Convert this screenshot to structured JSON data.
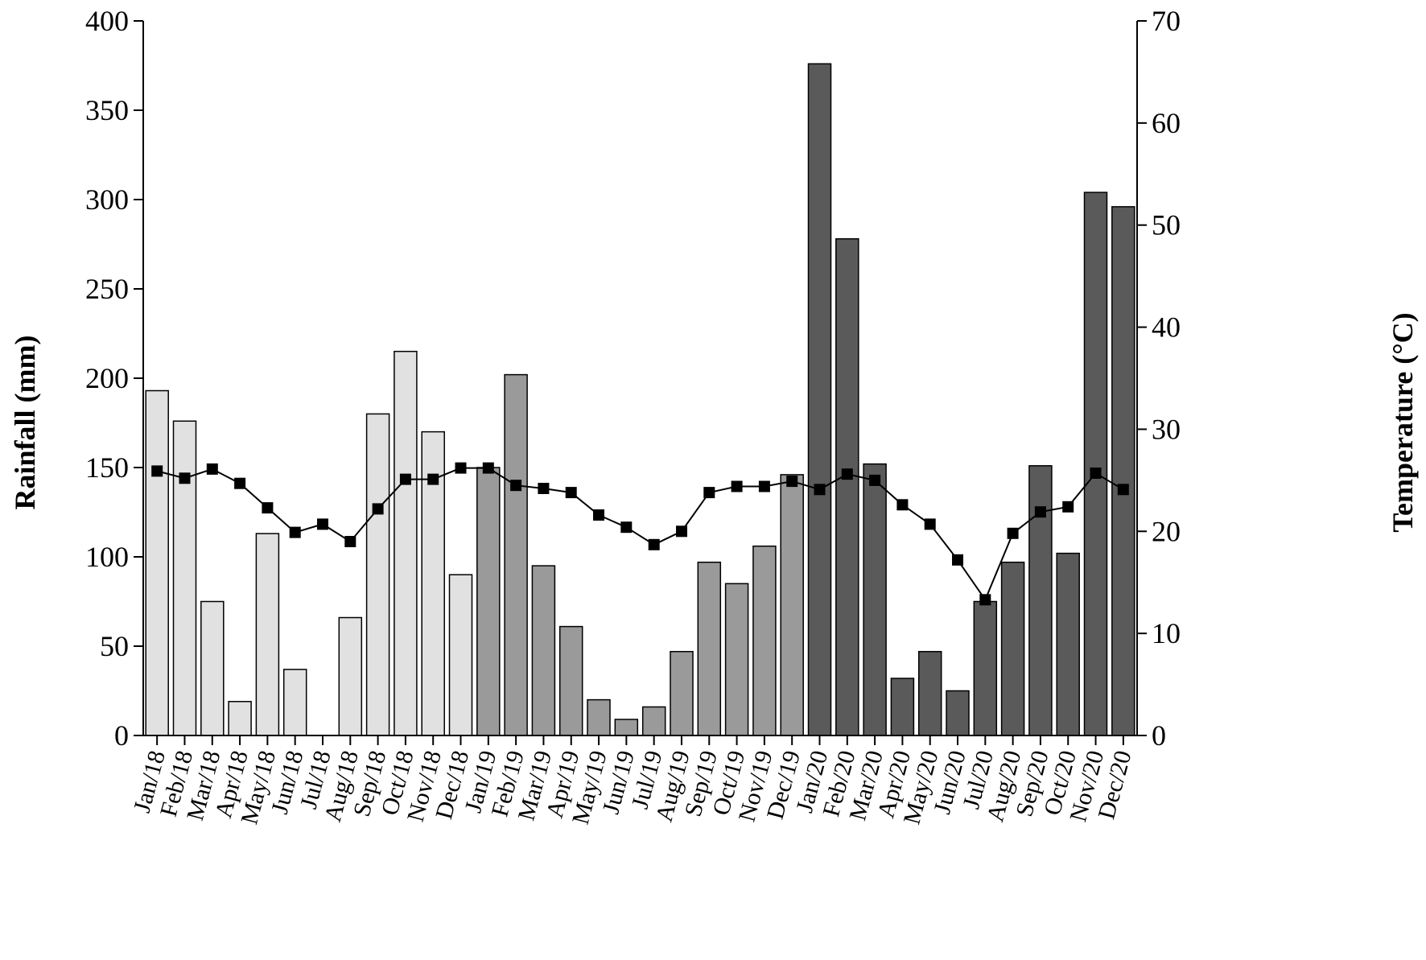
{
  "chart_data": {
    "type": "bar",
    "categories": [
      "Jan/18",
      "Feb/18",
      "Mar/18",
      "Apr/18",
      "May/18",
      "Jun/18",
      "Jul/18",
      "Aug/18",
      "Sep/18",
      "Oct/18",
      "Nov/18",
      "Dec/18",
      "Jan/19",
      "Feb/19",
      "Mar/19",
      "Apr/19",
      "May/19",
      "Jun/19",
      "Jul/19",
      "Aug/19",
      "Sep/19",
      "Oct/19",
      "Nov/19",
      "Dec/19",
      "Jan/20",
      "Feb/20",
      "Mar/20",
      "Apr/20",
      "May/20",
      "Jun/20",
      "Jul/20",
      "Aug/20",
      "Sep/20",
      "Oct/20",
      "Nov/20",
      "Dec/20"
    ],
    "series": [
      {
        "type": "bar",
        "axis": "left",
        "values": [
          193,
          176,
          75,
          19,
          113,
          37,
          0,
          66,
          180,
          215,
          170,
          90,
          150,
          202,
          95,
          61,
          20,
          9,
          16,
          47,
          97,
          85,
          106,
          146,
          376,
          278,
          152,
          32,
          47,
          25,
          75,
          97,
          151,
          102,
          304,
          296
        ],
        "bar_colors": [
          "#e1e1e1",
          "#e1e1e1",
          "#e1e1e1",
          "#e1e1e1",
          "#e1e1e1",
          "#e1e1e1",
          "#e1e1e1",
          "#e1e1e1",
          "#e1e1e1",
          "#e1e1e1",
          "#e1e1e1",
          "#e1e1e1",
          "#9a9a9a",
          "#9a9a9a",
          "#9a9a9a",
          "#9a9a9a",
          "#9a9a9a",
          "#9a9a9a",
          "#9a9a9a",
          "#9a9a9a",
          "#9a9a9a",
          "#9a9a9a",
          "#9a9a9a",
          "#9a9a9a",
          "#5a5a5a",
          "#5a5a5a",
          "#5a5a5a",
          "#5a5a5a",
          "#5a5a5a",
          "#5a5a5a",
          "#5a5a5a",
          "#5a5a5a",
          "#5a5a5a",
          "#5a5a5a",
          "#5a5a5a",
          "#5a5a5a"
        ]
      },
      {
        "type": "line",
        "axis": "right",
        "marker": "square",
        "color": "#000000",
        "values": [
          25.9,
          25.2,
          26.1,
          24.7,
          22.3,
          19.9,
          20.7,
          19.0,
          22.2,
          25.1,
          25.1,
          26.2,
          26.2,
          24.5,
          24.2,
          23.8,
          21.6,
          20.4,
          18.7,
          20.0,
          23.8,
          24.4,
          24.4,
          24.9,
          24.1,
          25.6,
          25.0,
          22.6,
          20.7,
          17.2,
          13.3,
          19.8,
          21.9,
          22.4,
          25.7,
          24.1
        ]
      }
    ],
    "ylabel": "Rainfall (mm)",
    "y2label": "Temperature (°C)",
    "ylim": [
      0,
      400
    ],
    "y2lim": [
      0,
      70
    ],
    "yticks": [
      0,
      50,
      100,
      150,
      200,
      250,
      300,
      350,
      400
    ],
    "y2ticks": [
      0,
      10,
      20,
      30,
      40,
      50,
      60,
      70
    ],
    "grid": false,
    "legend": "none"
  }
}
